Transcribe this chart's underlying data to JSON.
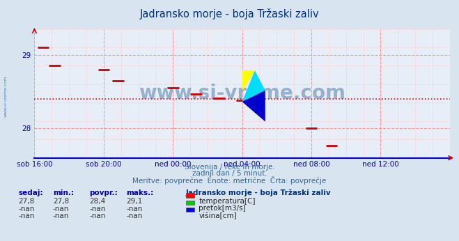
{
  "title": "Jadransko morje - boja Tržaski zaliv",
  "bg_color": "#d8e4f0",
  "plot_bg_color": "#e8eef8",
  "title_color": "#003080",
  "axis_color": "#0000aa",
  "grid_color_major": "#ff9999",
  "grid_color_minor": "#ffcccc",
  "avg_line_color": "#ff0000",
  "avg_value": 28.4,
  "ylim_min": 27.6,
  "ylim_max": 29.35,
  "yticks": [
    28,
    29
  ],
  "text_below": [
    "Slovenija / reke in morje.",
    "zadnji dan / 5 minut.",
    "Meritve: povprečne  Enote: metrične  Črta: povprečje"
  ],
  "footer_label_color": "#336699",
  "legend_title": "Jadransko morje - boja Tržaski zaliv",
  "legend_items": [
    {
      "label": "temperatura[C]",
      "color": "#ff0000"
    },
    {
      "label": "pretok[m3/s]",
      "color": "#00cc00"
    },
    {
      "label": "višina[cm]",
      "color": "#0000ff"
    }
  ],
  "stats_headers": [
    "sedaj:",
    "min.:",
    "povpr.:",
    "maks.:"
  ],
  "stats_rows": [
    [
      "27,8",
      "27,8",
      "28,4",
      "29,1"
    ],
    [
      "-nan",
      "-nan",
      "-nan",
      "-nan"
    ],
    [
      "-nan",
      "-nan",
      "-nan",
      "-nan"
    ]
  ],
  "watermark": "www.si-vreme.com",
  "watermark_color": "#336699",
  "side_watermark": "www.si-vreme.com",
  "xtick_labels": [
    "sob 16:00",
    "sob 20:00",
    "ned 00:00",
    "ned 04:00",
    "ned 08:00",
    "ned 12:00"
  ],
  "xtick_positions": [
    0,
    48,
    96,
    144,
    192,
    240
  ],
  "total_points": 288,
  "temp_data": [
    [
      6,
      29.1
    ],
    [
      14,
      28.85
    ],
    [
      48,
      28.8
    ],
    [
      58,
      28.65
    ],
    [
      96,
      28.55
    ],
    [
      112,
      28.47
    ],
    [
      128,
      28.41
    ],
    [
      144,
      28.38
    ],
    [
      152,
      28.36
    ],
    [
      192,
      28.0
    ],
    [
      206,
      27.77
    ]
  ]
}
